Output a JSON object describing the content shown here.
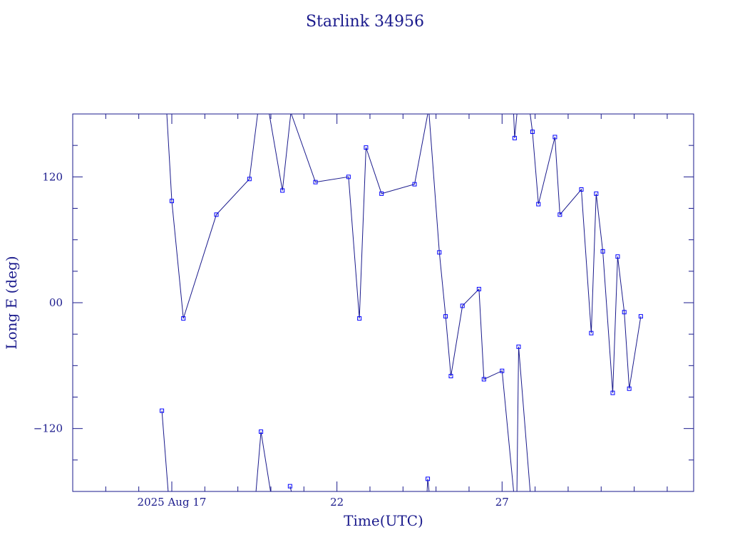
{
  "chart_data": {
    "type": "line",
    "title": "Starlink 34956",
    "xlabel": "Time(UTC)",
    "ylabel": "Long E (deg)",
    "x_unit": "days (August 2025)",
    "xlim": [
      14.0,
      32.8
    ],
    "ylim": [
      -180,
      180
    ],
    "x_ticks": [
      {
        "value": 17,
        "label": "2025 Aug 17"
      },
      {
        "value": 22,
        "label": "22"
      },
      {
        "value": 27,
        "label": "27"
      }
    ],
    "y_ticks": [
      {
        "value": 120,
        "label": "120"
      },
      {
        "value": 0,
        "label": "00"
      },
      {
        "value": -120,
        "label": "−120"
      }
    ],
    "grid": false,
    "line_color": "#1a1a8c",
    "marker_color": "#0000ff",
    "series": [
      {
        "points": [
          [
            16.7,
            -103
          ],
          [
            16.89,
            -180
          ]
        ]
      },
      {
        "points": [
          [
            16.85,
            180
          ],
          [
            17.0,
            97
          ],
          [
            17.35,
            -15
          ],
          [
            18.35,
            84
          ],
          [
            19.35,
            118
          ],
          [
            19.6,
            180
          ]
        ]
      },
      {
        "points": [
          [
            19.55,
            -180
          ],
          [
            19.7,
            -123
          ],
          [
            19.99,
            -180
          ]
        ]
      },
      {
        "points": [
          [
            19.95,
            180
          ],
          [
            20.35,
            107
          ],
          [
            20.6,
            180
          ]
        ]
      },
      {
        "points": [
          [
            20.58,
            -175
          ],
          [
            20.62,
            -180
          ]
        ]
      },
      {
        "points": [
          [
            20.62,
            180
          ],
          [
            21.35,
            115
          ],
          [
            22.35,
            120
          ],
          [
            22.68,
            -15
          ],
          [
            22.88,
            148
          ],
          [
            23.35,
            104
          ],
          [
            24.35,
            113
          ],
          [
            24.75,
            180
          ]
        ]
      },
      {
        "points": [
          [
            24.73,
            -180
          ],
          [
            24.75,
            -168
          ],
          [
            24.79,
            -180
          ]
        ]
      },
      {
        "points": [
          [
            24.79,
            180
          ],
          [
            25.1,
            48
          ],
          [
            25.29,
            -13
          ],
          [
            25.45,
            -70
          ],
          [
            25.8,
            -3
          ],
          [
            26.3,
            13
          ],
          [
            26.45,
            -73
          ],
          [
            27.0,
            -65
          ],
          [
            27.35,
            -180
          ]
        ]
      },
      {
        "points": [
          [
            27.35,
            180
          ],
          [
            27.38,
            157
          ],
          [
            27.45,
            180
          ]
        ]
      },
      {
        "points": [
          [
            27.45,
            -180
          ],
          [
            27.5,
            -42
          ],
          [
            27.85,
            -180
          ]
        ]
      },
      {
        "points": [
          [
            27.85,
            180
          ],
          [
            27.92,
            163
          ],
          [
            28.1,
            94
          ],
          [
            28.6,
            158
          ],
          [
            28.75,
            84
          ],
          [
            29.4,
            108
          ],
          [
            29.7,
            -29
          ],
          [
            29.85,
            104
          ],
          [
            30.05,
            49
          ],
          [
            30.35,
            -86
          ],
          [
            30.5,
            44
          ],
          [
            30.7,
            -9
          ],
          [
            30.85,
            -82
          ],
          [
            31.2,
            -13
          ]
        ]
      }
    ]
  }
}
